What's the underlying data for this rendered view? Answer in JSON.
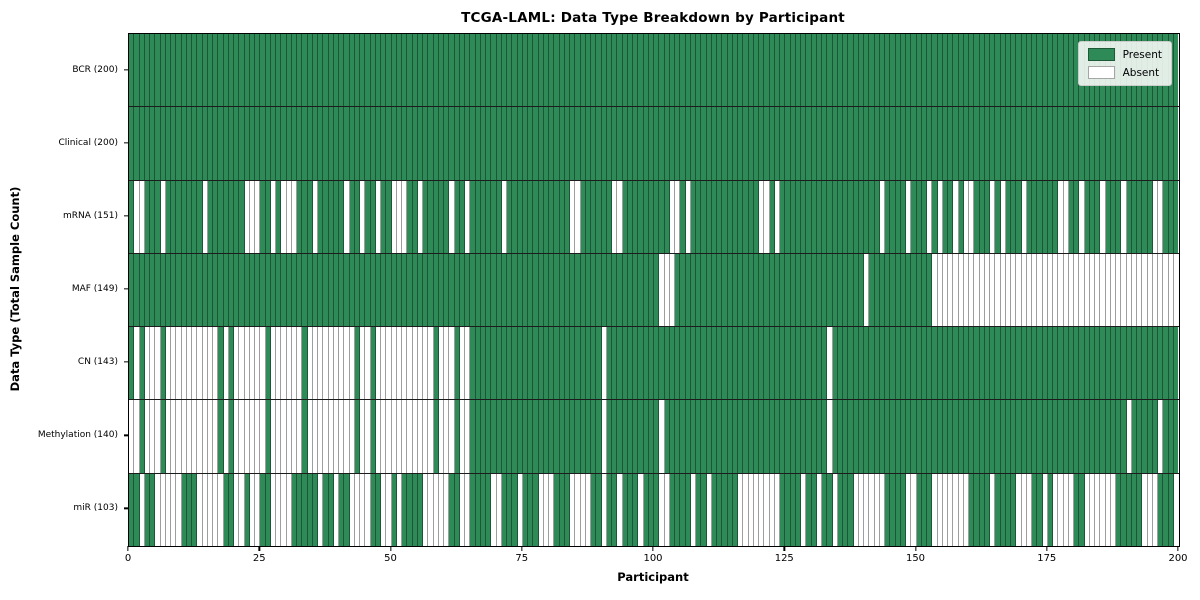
{
  "chart_data": {
    "type": "heatmap",
    "title": "TCGA-LAML: Data Type Breakdown by Participant",
    "xlabel": "Participant",
    "ylabel": "Data Type (Total Sample Count)",
    "x_range": [
      0,
      200
    ],
    "x_ticks": [
      0,
      25,
      50,
      75,
      100,
      125,
      150,
      175,
      200
    ],
    "n_participants": 200,
    "grid": false,
    "legend_position": "upper right",
    "legend_entries": [
      {
        "label": "Present",
        "color": "#2e8b57"
      },
      {
        "label": "Absent",
        "color": "#ffffff"
      }
    ],
    "colors": {
      "present": "#2e8b57",
      "absent": "#ffffff",
      "cell_edge": "rgba(0,0,0,0.38)",
      "row_divider": "#1c1c1c",
      "axis": "#000000"
    },
    "rows": [
      {
        "label": "BCR (200)",
        "present_count": 200,
        "pattern": "11111111111111111111111111111111111111111111111111111111111111111111111111111111111111111111111111111111111111111111111111111111111111111111111111111111111111111111111111111111111111111111111111111111"
      },
      {
        "label": "Clinical (200)",
        "present_count": 200,
        "pattern": "11111111111111111111111111111111111111111111111111111111111111111111111111111111111111111111111111111111111111111111111111111111111111111111111111111111111111111111111111111111111111111111111111111111"
      },
      {
        "label": "mRNA (151)",
        "present_count": 151,
        "pattern": "10011101111111011111110001101000111011111011011011000110111110110111111011111111111100111111001111111110010111111111111100101111111111111111111011110111010110100111010111011111100110111011101111100111 11"
      },
      {
        "label": "MAF (149)",
        "present_count": 149,
        "pattern": "11111111111111111111111111111111111111111111111111111111111111111111111111111111111111111111111111111000111111111111111111111111111111111111011111111111100000000000000000000000000000000000000000000000"
      },
      {
        "label": "CN (143)",
        "present_count": 143,
        "pattern": "10100010000000000101000000100000010000000001001000000000001000100111111111111111111111111101111111111111111111111111111111111111111110111111111111111111111111111111111111111111111111111111111111111111 0111111111"
      },
      {
        "label": "Methylation (140)",
        "present_count": 140,
        "pattern": "00100010000000000101000000100000010000000001001000000000001000100111111111111111111111111101111111111011111111111111111111111111111110111111111111111111111111111111111111111111111111111111110111110111 111111"
      },
      {
        "label": "miR (103)",
        "present_count": 103,
        "pattern": "11011000001110000011001001100001111101101100001100101111000001100111100111011100011100001101101110111001111011011111000000001111011011011100000011110011100000001111011110001101000011000000111110001110"
      }
    ]
  }
}
